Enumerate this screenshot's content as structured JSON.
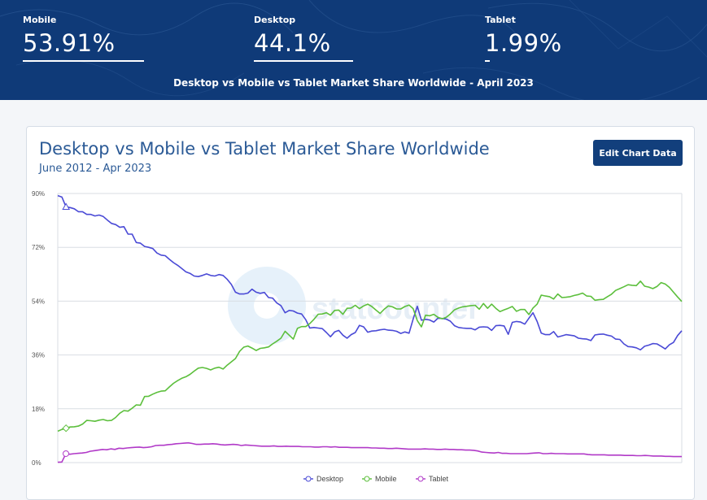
{
  "hero": {
    "stats": [
      {
        "label": "Mobile",
        "value": "53.91%",
        "share": 53.91
      },
      {
        "label": "Desktop",
        "value": "44.1%",
        "share": 44.1
      },
      {
        "label": "Tablet",
        "value": "1.99%",
        "share": 1.99
      }
    ],
    "caption": "Desktop vs Mobile vs Tablet Market Share Worldwide - April 2023"
  },
  "card": {
    "edit_button_label": "Edit Chart Data",
    "watermark": "statcounter"
  },
  "colors": {
    "Desktop": "#4a4ad6",
    "Mobile": "#5cbf3c",
    "Tablet": "#b13ac8",
    "header_bg": "#0f3a78",
    "button_bg": "#123f7c",
    "title_text": "#2b5a96"
  },
  "chart_data": {
    "type": "line",
    "title": "Desktop vs Mobile vs Tablet Market Share Worldwide",
    "subtitle": "June 2012 - Apr 2023",
    "ylim": [
      0,
      90
    ],
    "yticks": [
      "0%",
      "18%",
      "36%",
      "54%",
      "72%",
      "90%"
    ],
    "ytick_values": [
      0,
      18,
      36,
      54,
      72,
      90
    ],
    "grid": true,
    "legend_position": "bottom-center",
    "x_start": "June 2012",
    "x_end": "Apr 2023",
    "series": [
      {
        "name": "Desktop",
        "values": [
          89.3,
          88.8,
          85.5,
          85.3,
          84.9,
          83.9,
          83.9,
          83.0,
          83.0,
          82.5,
          82.8,
          82.3,
          81.1,
          80.0,
          79.6,
          78.7,
          78.9,
          76.4,
          76.4,
          73.6,
          73.4,
          72.3,
          72.0,
          71.6,
          70.1,
          69.4,
          69.2,
          68.0,
          66.9,
          66.0,
          64.9,
          63.8,
          63.3,
          62.4,
          62.2,
          62.6,
          63.1,
          62.6,
          62.4,
          62.9,
          62.6,
          61.3,
          59.6,
          57.0,
          56.4,
          56.4,
          56.7,
          58.0,
          57.0,
          56.6,
          56.9,
          55.2,
          55.0,
          53.4,
          52.5,
          50.1,
          50.9,
          50.7,
          50.0,
          49.7,
          47.8,
          45.0,
          45.2,
          45.0,
          44.8,
          43.5,
          42.1,
          43.7,
          44.2,
          42.6,
          41.6,
          42.8,
          43.5,
          45.9,
          45.4,
          43.6,
          44.0,
          44.1,
          44.4,
          44.6,
          44.3,
          44.2,
          43.9,
          43.2,
          43.7,
          43.3,
          48.0,
          52.3,
          47.6,
          47.9,
          47.7,
          47.0,
          48.3,
          48.2,
          48.0,
          47.3,
          45.8,
          45.2,
          45.0,
          44.9,
          44.9,
          44.4,
          45.3,
          45.4,
          45.3,
          44.2,
          45.8,
          45.9,
          45.7,
          42.9,
          46.9,
          47.2,
          47.0,
          46.3,
          48.3,
          50.1,
          47.2,
          43.3,
          42.8,
          42.8,
          43.8,
          42.0,
          42.4,
          42.8,
          42.6,
          42.4,
          41.6,
          41.4,
          41.3,
          40.8,
          42.7,
          42.9,
          43.0,
          42.6,
          42.3,
          41.3,
          41.2,
          39.7,
          38.8,
          38.7,
          38.4,
          37.7,
          38.9,
          39.3,
          39.8,
          39.7,
          38.9,
          38.0,
          39.4,
          40.2,
          42.5,
          44.1
        ]
      },
      {
        "name": "Mobile",
        "values": [
          10.5,
          11.1,
          11.5,
          11.9,
          12.0,
          12.2,
          12.9,
          14.1,
          14.0,
          13.8,
          14.2,
          14.4,
          14.0,
          14.1,
          15.1,
          16.5,
          17.4,
          17.2,
          18.2,
          19.3,
          19.2,
          22.1,
          22.2,
          22.9,
          23.5,
          23.9,
          24.0,
          25.3,
          26.5,
          27.4,
          28.2,
          28.7,
          29.5,
          30.6,
          31.6,
          31.8,
          31.5,
          31.0,
          31.6,
          31.9,
          31.3,
          32.6,
          33.7,
          34.8,
          37.2,
          38.6,
          39.0,
          38.3,
          37.5,
          38.2,
          38.4,
          38.7,
          39.7,
          40.6,
          41.6,
          43.9,
          42.6,
          41.3,
          44.9,
          45.5,
          45.5,
          46.5,
          47.9,
          49.6,
          49.7,
          50.1,
          49.3,
          50.9,
          51.0,
          49.6,
          51.6,
          51.7,
          52.6,
          51.5,
          52.4,
          53.0,
          52.2,
          51.0,
          49.9,
          51.3,
          52.4,
          52.1,
          51.4,
          51.4,
          52.2,
          52.7,
          51.5,
          47.5,
          45.4,
          49.3,
          49.1,
          49.6,
          48.6,
          48.1,
          48.6,
          49.7,
          51.1,
          51.7,
          52.1,
          52.3,
          52.5,
          52.6,
          51.3,
          53.2,
          51.6,
          53.0,
          51.6,
          50.5,
          51.1,
          51.6,
          52.2,
          50.6,
          51.2,
          51.2,
          49.5,
          51.7,
          53.0,
          56.0,
          55.7,
          55.5,
          54.7,
          56.4,
          55.2,
          55.3,
          55.5,
          55.9,
          56.2,
          56.7,
          55.7,
          55.6,
          54.3,
          54.5,
          54.6,
          55.5,
          56.3,
          57.6,
          58.2,
          58.8,
          59.5,
          59.3,
          59.2,
          60.7,
          59.0,
          58.7,
          58.2,
          58.9,
          60.2,
          59.7,
          58.6,
          57.0,
          55.4,
          53.9
        ]
      },
      {
        "name": "Tablet",
        "values": [
          0.1,
          0.2,
          3.0,
          2.8,
          3.0,
          3.1,
          3.2,
          3.4,
          3.8,
          4.0,
          4.2,
          4.4,
          4.3,
          4.6,
          4.4,
          4.8,
          4.7,
          4.9,
          5.0,
          5.1,
          5.2,
          5.0,
          5.1,
          5.3,
          5.7,
          5.8,
          5.8,
          6.0,
          6.1,
          6.3,
          6.4,
          6.5,
          6.6,
          6.4,
          6.1,
          6.1,
          6.2,
          6.2,
          6.3,
          6.2,
          6.0,
          5.9,
          6.0,
          6.1,
          6.0,
          5.7,
          5.9,
          5.8,
          5.7,
          5.6,
          5.5,
          5.5,
          5.5,
          5.6,
          5.4,
          5.4,
          5.5,
          5.4,
          5.4,
          5.4,
          5.3,
          5.3,
          5.3,
          5.2,
          5.2,
          5.3,
          5.3,
          5.2,
          5.3,
          5.1,
          5.1,
          5.1,
          5.0,
          5.0,
          5.0,
          5.0,
          5.0,
          4.9,
          4.9,
          4.8,
          4.8,
          4.7,
          4.7,
          4.8,
          4.7,
          4.6,
          4.5,
          4.5,
          4.5,
          4.5,
          4.6,
          4.5,
          4.5,
          4.4,
          4.4,
          4.5,
          4.4,
          4.4,
          4.3,
          4.3,
          4.2,
          4.2,
          4.1,
          3.9,
          3.5,
          3.4,
          3.3,
          3.2,
          3.4,
          3.1,
          3.1,
          3.0,
          3.0,
          3.0,
          3.0,
          3.0,
          3.1,
          3.2,
          3.3,
          3.0,
          3.0,
          3.1,
          3.0,
          3.0,
          3.0,
          2.9,
          2.9,
          2.9,
          2.9,
          2.9,
          2.7,
          2.6,
          2.6,
          2.6,
          2.6,
          2.5,
          2.5,
          2.5,
          2.5,
          2.4,
          2.4,
          2.4,
          2.3,
          2.3,
          2.4,
          2.3,
          2.2,
          2.2,
          2.2,
          2.1,
          2.1,
          2.0,
          2.0,
          2.0
        ]
      }
    ]
  }
}
